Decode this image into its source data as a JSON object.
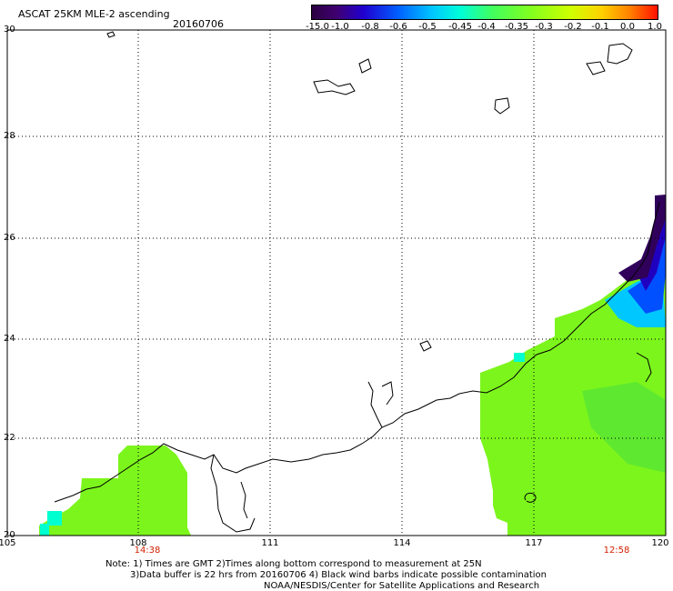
{
  "title": "ASCAT 25KM MLE-2 ascending",
  "date": "20160706",
  "colorbar": {
    "labels": [
      "-15.0",
      "-1.0",
      "-0.8",
      "-0.6",
      "-0.5",
      "-0.45",
      "-0.4",
      "-0.35",
      "-0.3",
      "-0.2",
      "-0.1",
      "0.0",
      "1.0"
    ],
    "colors": [
      "#2a0040",
      "#400070",
      "#2000d0",
      "#0060ff",
      "#00c8ff",
      "#00ffd8",
      "#40ff60",
      "#80ff20",
      "#d0ff00",
      "#ffd000",
      "#ff8000",
      "#ff1000"
    ]
  },
  "axes": {
    "y_ticks": [
      "30",
      "28",
      "26",
      "24",
      "22",
      "20"
    ],
    "x_ticks": [
      "105",
      "108",
      "111",
      "114",
      "117",
      "120"
    ]
  },
  "times": {
    "left": "14:38",
    "right": "12:58"
  },
  "notes": {
    "line1": "Note: 1) Times are GMT 2)Times along bottom correspond to measurement at 25N",
    "line2": "3)Data buffer is 22 hrs from 20160706 4) Black wind barbs indicate possible contamination",
    "line3": "NOAA/NESDIS/Center for Satellite Applications and Research"
  },
  "map_colors": {
    "green_main": "#7cf51c",
    "green_light": "#94f81a",
    "green_dark": "#5ee830",
    "cyan": "#00ffd0",
    "blue": "#0050ff",
    "navy": "#2000c0",
    "purple": "#30005a"
  }
}
